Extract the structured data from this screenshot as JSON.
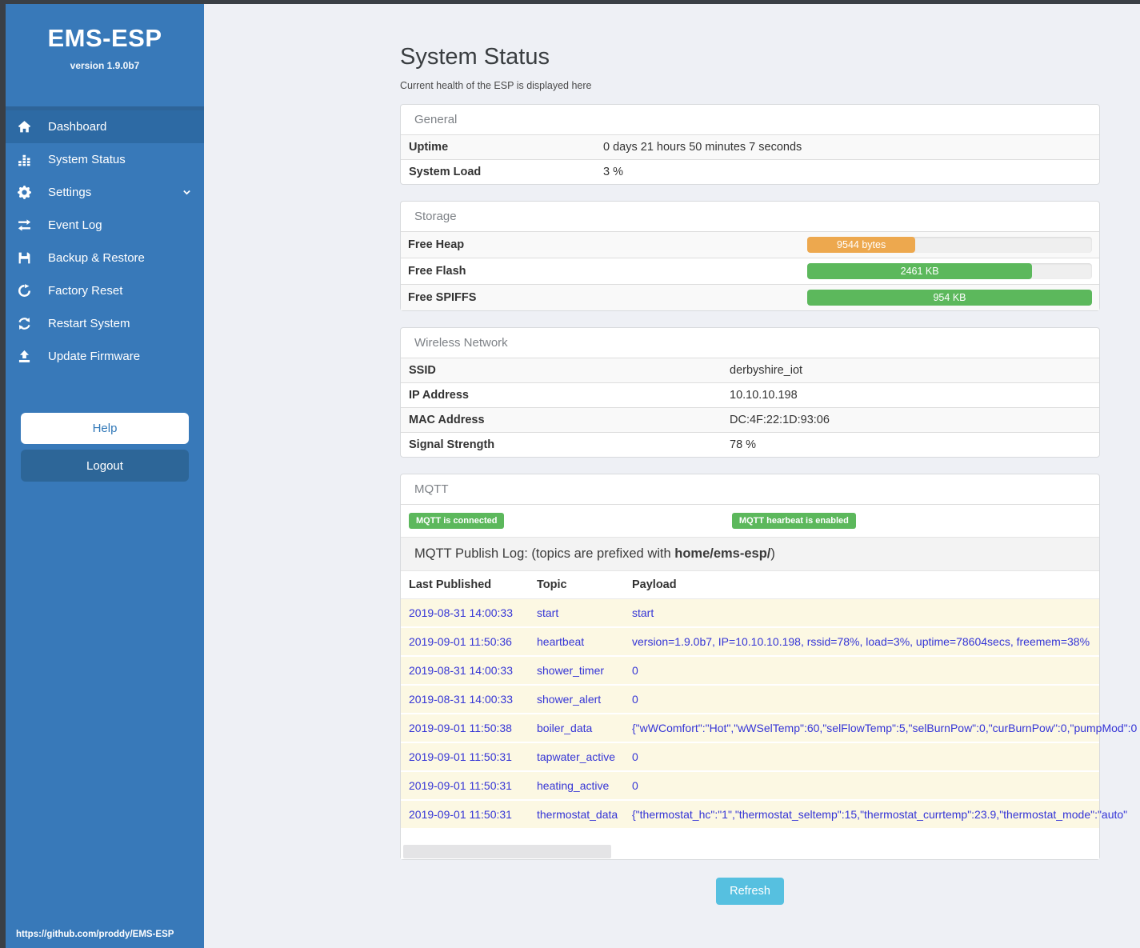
{
  "sidebar": {
    "title": "EMS-ESP",
    "version": "version 1.9.0b7",
    "items": [
      {
        "label": "Dashboard",
        "icon": "home-icon",
        "active": true
      },
      {
        "label": "System Status",
        "icon": "bar-chart-icon",
        "active": false
      },
      {
        "label": "Settings",
        "icon": "gear-icon",
        "active": false,
        "chevron": true
      },
      {
        "label": "Event Log",
        "icon": "exchange-icon",
        "active": false
      },
      {
        "label": "Backup & Restore",
        "icon": "floppy-icon",
        "active": false
      },
      {
        "label": "Factory Reset",
        "icon": "rotate-icon",
        "active": false
      },
      {
        "label": "Restart System",
        "icon": "refresh-icon",
        "active": false
      },
      {
        "label": "Update Firmware",
        "icon": "upload-icon",
        "active": false
      }
    ],
    "help_label": "Help",
    "logout_label": "Logout",
    "footer_link": "https://github.com/proddy/EMS-ESP"
  },
  "page": {
    "title": "System Status",
    "subtitle": "Current health of the ESP is displayed here",
    "refresh_label": "Refresh"
  },
  "general": {
    "header": "General",
    "rows": [
      {
        "label": "Uptime",
        "value": "0 days 21 hours 50 minutes 7 seconds"
      },
      {
        "label": "System Load",
        "value": "3 %"
      }
    ]
  },
  "storage": {
    "header": "Storage",
    "rows": [
      {
        "label": "Free Heap",
        "value": "9544 bytes",
        "percent": 38,
        "color": "#eda84e"
      },
      {
        "label": "Free Flash",
        "value": "2461 KB",
        "percent": 79,
        "color": "#5cb85c"
      },
      {
        "label": "Free SPIFFS",
        "value": "954 KB",
        "percent": 100,
        "color": "#5cb85c"
      }
    ]
  },
  "wireless": {
    "header": "Wireless Network",
    "rows": [
      {
        "label": "SSID",
        "value": "derbyshire_iot"
      },
      {
        "label": "IP Address",
        "value": "10.10.10.198"
      },
      {
        "label": "MAC Address",
        "value": "DC:4F:22:1D:93:06"
      },
      {
        "label": "Signal Strength",
        "value": "78 %"
      }
    ]
  },
  "mqtt": {
    "header": "MQTT",
    "badges": [
      "MQTT is connected",
      "MQTT hearbeat is enabled"
    ],
    "log_title_prefix": "MQTT Publish Log: (topics are prefixed with ",
    "log_title_bold": "home/ems-esp/",
    "log_title_suffix": ")",
    "columns": [
      "Last Published",
      "Topic",
      "Payload"
    ],
    "log": [
      {
        "time": "2019-08-31 14:00:33",
        "topic": "start",
        "payload": "start"
      },
      {
        "time": "2019-09-01 11:50:36",
        "topic": "heartbeat",
        "payload": "version=1.9.0b7, IP=10.10.10.198, rssid=78%, load=3%, uptime=78604secs, freemem=38%"
      },
      {
        "time": "2019-08-31 14:00:33",
        "topic": "shower_timer",
        "payload": "0"
      },
      {
        "time": "2019-08-31 14:00:33",
        "topic": "shower_alert",
        "payload": "0"
      },
      {
        "time": "2019-09-01 11:50:38",
        "topic": "boiler_data",
        "payload": "{\"wWComfort\":\"Hot\",\"wWSelTemp\":60,\"selFlowTemp\":5,\"selBurnPow\":0,\"curBurnPow\":0,\"pumpMod\":0"
      },
      {
        "time": "2019-09-01 11:50:31",
        "topic": "tapwater_active",
        "payload": "0"
      },
      {
        "time": "2019-09-01 11:50:31",
        "topic": "heating_active",
        "payload": "0"
      },
      {
        "time": "2019-09-01 11:50:31",
        "topic": "thermostat_data",
        "payload": "{\"thermostat_hc\":\"1\",\"thermostat_seltemp\":15,\"thermostat_currtemp\":23.9,\"thermostat_mode\":\"auto\""
      }
    ]
  },
  "colors": {
    "sidebar_blue": "#3879b9",
    "active_item_blue": "#2d6aa4",
    "logout_blue": "#2d6698",
    "success_green": "#5cb85c",
    "warning_orange": "#eda84e",
    "refresh_info_blue": "#56c0e0",
    "log_row_bg": "#fcf8e3",
    "log_text_blue": "#3535d6"
  }
}
